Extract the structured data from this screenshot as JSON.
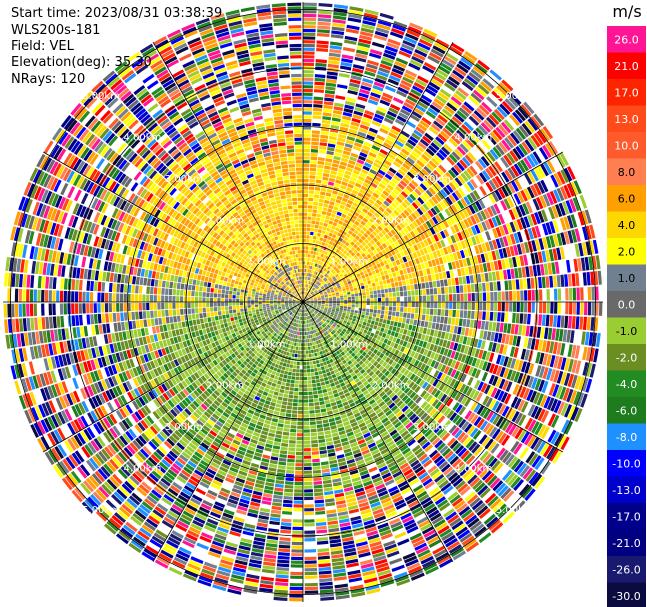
{
  "header": {
    "start_time": "Start time: 2023/08/31 03:38:39",
    "instrument": "WLS200s-181",
    "field": "Field: VEL",
    "elevation": "Elevation(deg): 35.30",
    "nrays": "NRays: 120"
  },
  "colorbar": {
    "unit": "m/s",
    "levels": [
      {
        "label": "26.0",
        "color": "#ff1493"
      },
      {
        "label": "21.0",
        "color": "#ff0000"
      },
      {
        "label": "17.0",
        "color": "#ff2400"
      },
      {
        "label": "13.0",
        "color": "#ff4a1a"
      },
      {
        "label": "10.0",
        "color": "#ff5a2b"
      },
      {
        "label": "8.0",
        "color": "#ff7f50"
      },
      {
        "label": "6.0",
        "color": "#ff9f00"
      },
      {
        "label": "4.0",
        "color": "#ffd700"
      },
      {
        "label": "2.0",
        "color": "#ffff00"
      },
      {
        "label": "1.0",
        "color": "#708090"
      },
      {
        "label": "0.0",
        "color": "#696969"
      },
      {
        "label": "-1.0",
        "color": "#9acd32"
      },
      {
        "label": "-2.0",
        "color": "#6b8e23"
      },
      {
        "label": "-4.0",
        "color": "#228b22"
      },
      {
        "label": "-6.0",
        "color": "#1e7b1e"
      },
      {
        "label": "-8.0",
        "color": "#1e90ff"
      },
      {
        "label": "-10.0",
        "color": "#0000ff"
      },
      {
        "label": "-13.0",
        "color": "#0000cd"
      },
      {
        "label": "-17.0",
        "color": "#00008b"
      },
      {
        "label": "-21.0",
        "color": "#000080"
      },
      {
        "label": "-26.0",
        "color": "#191970"
      },
      {
        "label": "-30.0",
        "color": "#0b0b40"
      }
    ]
  },
  "chart_data": {
    "type": "heatmap",
    "projection": "ppi-polar",
    "nrays": 120,
    "range_rings": [
      "1.00km",
      "2.00km",
      "3.00km",
      "4.00km",
      "5.00km"
    ],
    "field": "VEL",
    "units": "m/s",
    "pattern": {
      "positive_sector_deg": [
        280,
        80
      ],
      "negative_sector_deg": [
        100,
        260
      ],
      "valid_range_km": 3.3,
      "noise_beyond_km": 3.3
    }
  }
}
